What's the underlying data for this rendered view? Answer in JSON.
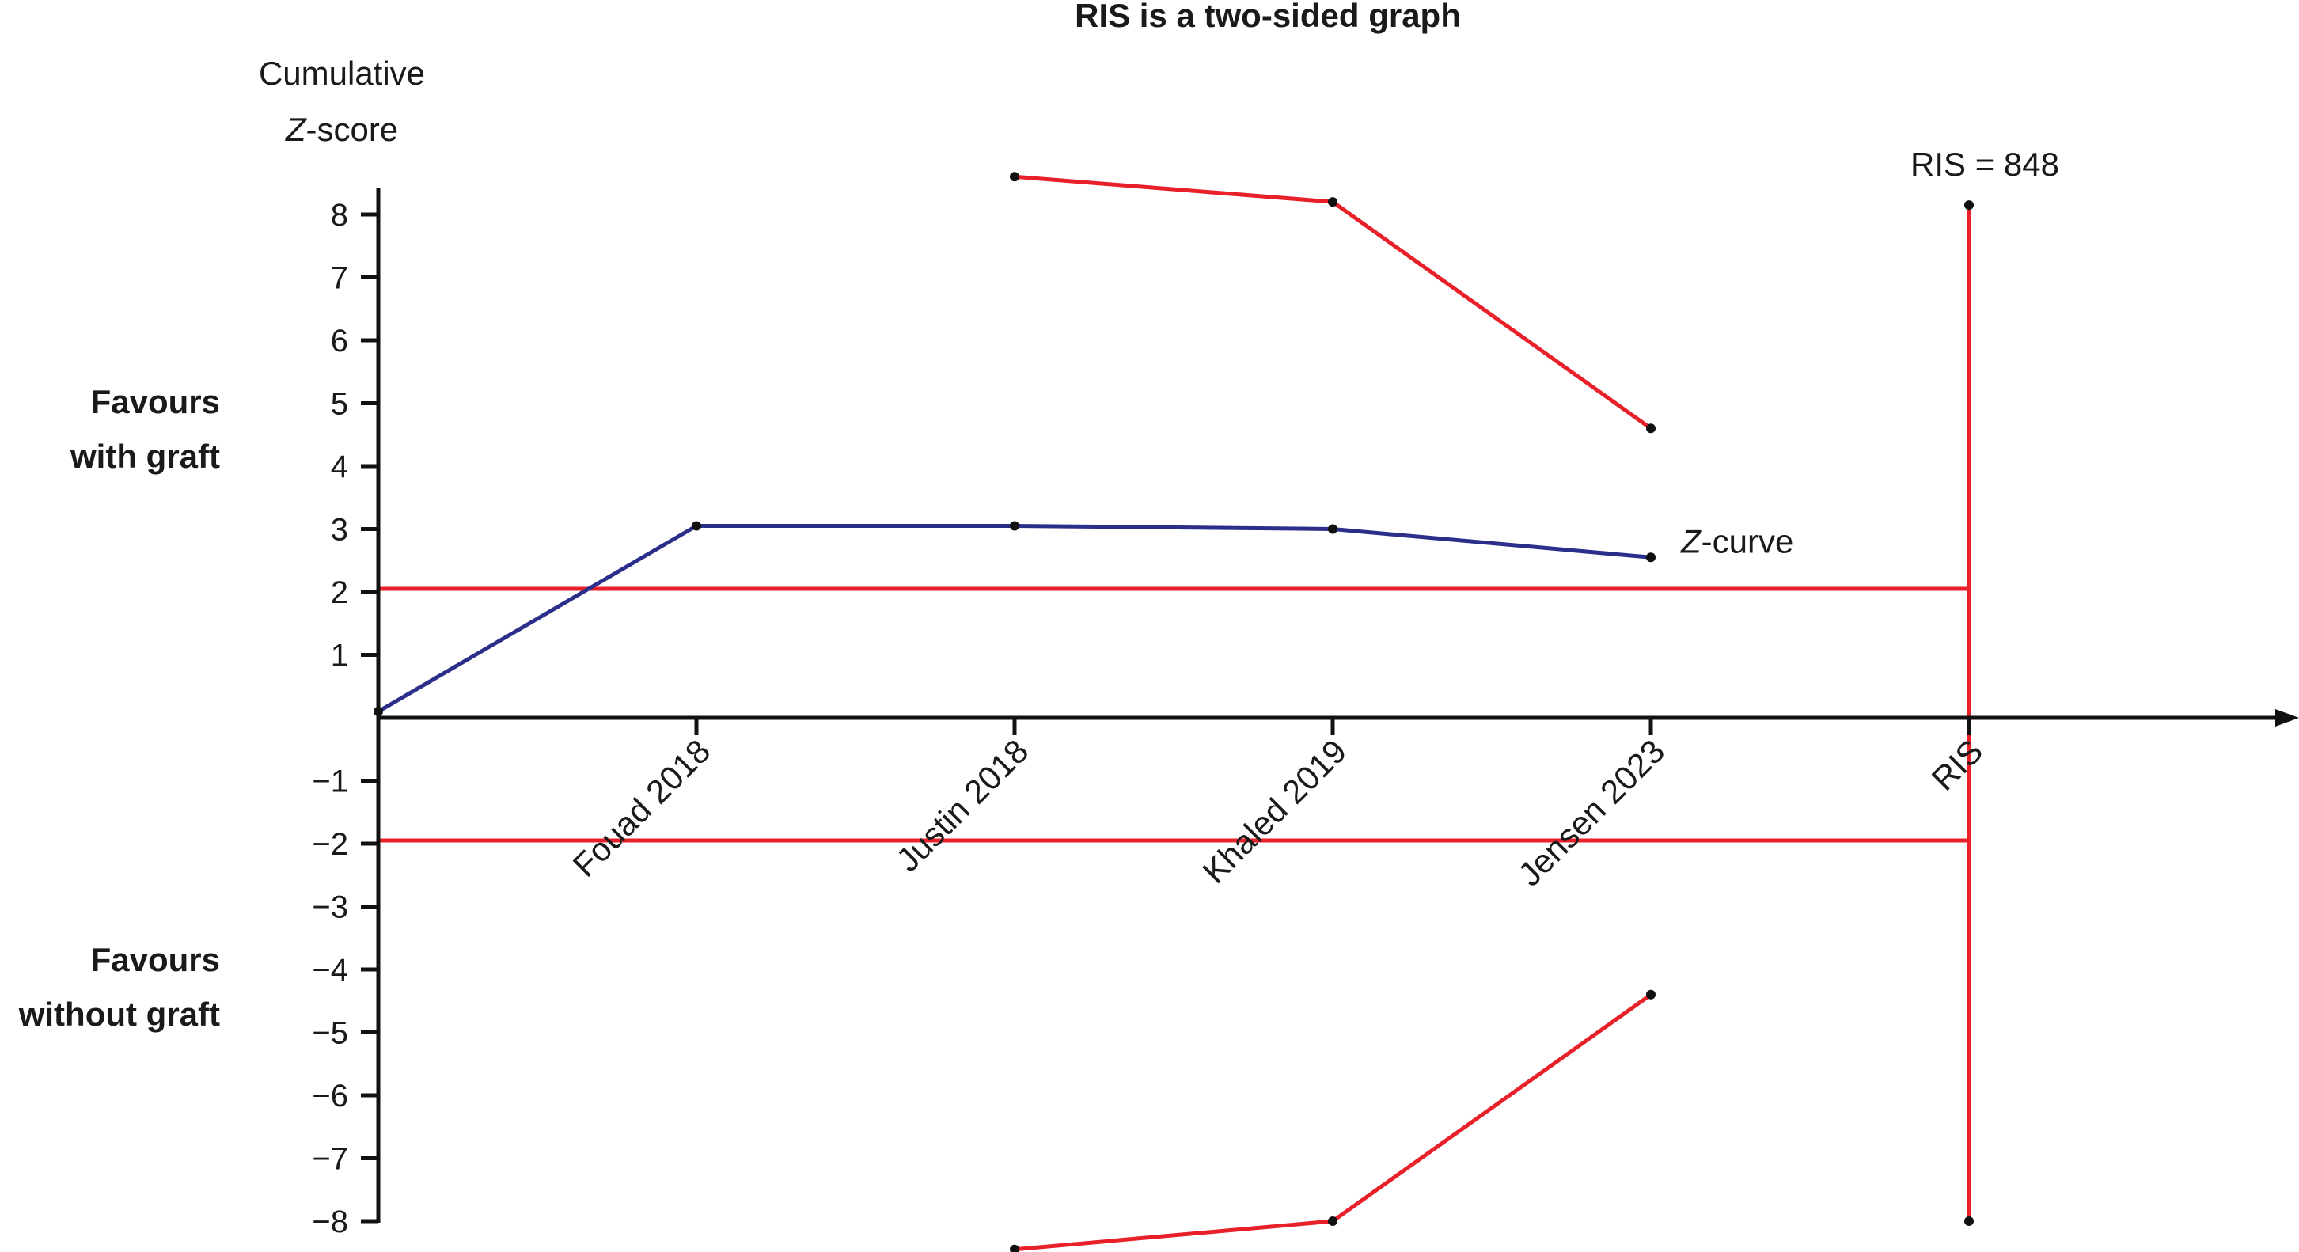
{
  "chart_data": {
    "type": "line",
    "title": "RIS is a two-sided graph",
    "ylabel": [
      "Cumulative",
      "Z-score"
    ],
    "ylim": [
      -8.5,
      8.5
    ],
    "yticks": [
      8,
      7,
      6,
      5,
      4,
      3,
      2,
      1,
      -1,
      -2,
      -3,
      -4,
      -5,
      -6,
      -7,
      -8
    ],
    "ytick_labels": [
      "8",
      "7",
      "6",
      "5",
      "4",
      "3",
      "2",
      "1",
      "−1",
      "−2",
      "−3",
      "−4",
      "−5",
      "−6",
      "−7",
      "−8"
    ],
    "categories": [
      "Fouad 2018",
      "Justin 2018",
      "Khaled 2019",
      "Jensen 2023",
      "RIS"
    ],
    "region_labels": {
      "upper": [
        "Favours",
        "with graft"
      ],
      "lower": [
        "Favours",
        "without graft"
      ]
    },
    "series": [
      {
        "name": "Z-curve",
        "color": "#2b2f8a",
        "points": [
          [
            "origin",
            0.1
          ],
          [
            "Fouad 2018",
            3.05
          ],
          [
            "Justin 2018",
            3.05
          ],
          [
            "Khaled 2019",
            3.0
          ],
          [
            "Jensen 2023",
            2.55
          ]
        ]
      },
      {
        "color": "#e8202a",
        "points": [
          [
            "Justin 2018",
            8.6
          ],
          [
            "Khaled 2019",
            8.2
          ],
          [
            "Jensen 2023",
            4.6
          ]
        ]
      },
      {
        "color": "#e8202a",
        "points": [
          [
            "Justin 2018",
            -8.45
          ],
          [
            "Khaled 2019",
            -8.0
          ],
          [
            "Jensen 2023",
            -4.4
          ]
        ]
      }
    ],
    "significance_lines": [
      2.05,
      -1.95
    ],
    "ris_line": {
      "category": "RIS",
      "from": -8.0,
      "to": 8.15,
      "label": "RIS = 848"
    },
    "grid": false
  }
}
